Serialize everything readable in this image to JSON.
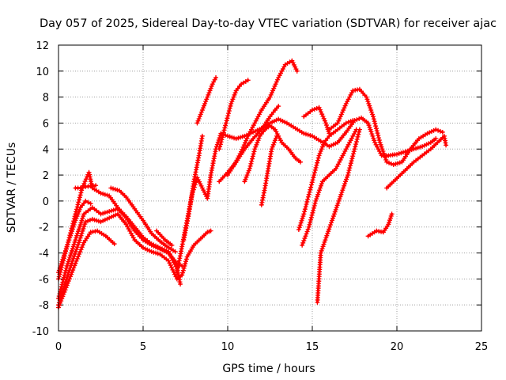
{
  "chart_data": {
    "type": "scatter",
    "title": "Day 057 of 2025, Sidereal Day-to-day VTEC variation (SDTVAR) for receiver ajac",
    "xlabel": "GPS time / hours",
    "ylabel": "SDTVAR / TECUs",
    "xlim": [
      0,
      25
    ],
    "ylim": [
      -10,
      12
    ],
    "xticks": [
      0,
      5,
      10,
      15,
      20,
      25
    ],
    "yticks": [
      -10,
      -8,
      -6,
      -4,
      -2,
      0,
      2,
      4,
      6,
      8,
      10,
      12
    ],
    "grid": true,
    "marker": "+",
    "color": "#ff0000",
    "series": [
      {
        "name": "s1",
        "points": [
          [
            0.0,
            -8.2
          ],
          [
            0.5,
            -6.5
          ],
          [
            1.0,
            -4.8
          ],
          [
            1.5,
            -3.2
          ],
          [
            1.9,
            -2.4
          ],
          [
            2.3,
            -2.3
          ],
          [
            2.8,
            -2.7
          ],
          [
            3.3,
            -3.3
          ]
        ]
      },
      {
        "name": "s2",
        "points": [
          [
            0.0,
            -8.0
          ],
          [
            0.6,
            -5.5
          ],
          [
            1.2,
            -3.2
          ],
          [
            1.6,
            -1.6
          ],
          [
            2.0,
            -1.4
          ],
          [
            2.5,
            -1.6
          ],
          [
            3.0,
            -1.3
          ],
          [
            3.5,
            -1.0
          ],
          [
            4.0,
            -1.8
          ],
          [
            4.5,
            -3.0
          ],
          [
            5.0,
            -3.6
          ],
          [
            5.5,
            -3.9
          ],
          [
            6.0,
            -4.1
          ],
          [
            6.5,
            -4.6
          ],
          [
            7.0,
            -6.0
          ],
          [
            7.3,
            -5.7
          ],
          [
            7.6,
            -4.3
          ],
          [
            8.0,
            -3.4
          ],
          [
            8.4,
            -2.9
          ],
          [
            8.8,
            -2.4
          ],
          [
            9.0,
            -2.3
          ]
        ]
      },
      {
        "name": "s3",
        "points": [
          [
            0.0,
            -7.5
          ],
          [
            0.5,
            -5.0
          ],
          [
            1.0,
            -3.0
          ],
          [
            1.5,
            -1.0
          ],
          [
            2.0,
            -0.5
          ],
          [
            2.5,
            -1.0
          ],
          [
            3.0,
            -0.8
          ],
          [
            3.5,
            -0.6
          ],
          [
            4.0,
            -1.3
          ],
          [
            4.5,
            -2.3
          ],
          [
            5.0,
            -3.0
          ],
          [
            5.5,
            -3.4
          ],
          [
            6.0,
            -3.7
          ],
          [
            6.5,
            -4.0
          ],
          [
            7.0,
            -4.8
          ],
          [
            7.3,
            -5.0
          ]
        ]
      },
      {
        "name": "s4",
        "points": [
          [
            0.0,
            -6.0
          ],
          [
            0.6,
            -3.0
          ],
          [
            1.0,
            -1.0
          ],
          [
            1.4,
            1.0
          ],
          [
            1.8,
            2.2
          ],
          [
            2.0,
            1.0
          ],
          [
            2.5,
            0.6
          ],
          [
            3.0,
            0.4
          ],
          [
            3.5,
            -0.5
          ],
          [
            4.0,
            -1.2
          ],
          [
            4.5,
            -2.0
          ],
          [
            5.0,
            -2.8
          ],
          [
            5.5,
            -3.3
          ],
          [
            6.0,
            -3.6
          ],
          [
            6.5,
            -3.9
          ],
          [
            7.0,
            -5.2
          ],
          [
            7.2,
            -6.4
          ]
        ]
      },
      {
        "name": "s5",
        "points": [
          [
            0.0,
            -5.5
          ],
          [
            0.5,
            -3.5
          ],
          [
            1.0,
            -1.5
          ],
          [
            1.3,
            -0.5
          ],
          [
            1.6,
            0.0
          ],
          [
            1.9,
            -0.2
          ]
        ]
      },
      {
        "name": "s6",
        "points": [
          [
            1.0,
            1.0
          ],
          [
            1.3,
            1.0
          ],
          [
            1.6,
            1.1
          ],
          [
            2.2,
            1.2
          ]
        ]
      },
      {
        "name": "s7",
        "points": [
          [
            3.1,
            1.0
          ],
          [
            3.6,
            0.8
          ],
          [
            4.0,
            0.3
          ],
          [
            4.5,
            -0.6
          ],
          [
            5.0,
            -1.5
          ],
          [
            5.5,
            -2.5
          ],
          [
            6.0,
            -3.1
          ],
          [
            6.4,
            -3.5
          ],
          [
            6.9,
            -3.9
          ]
        ]
      },
      {
        "name": "s8",
        "points": [
          [
            5.8,
            -2.3
          ],
          [
            6.3,
            -3.0
          ],
          [
            6.7,
            -3.4
          ]
        ]
      },
      {
        "name": "s9",
        "points": [
          [
            7.0,
            -5.5
          ],
          [
            7.3,
            -3.5
          ],
          [
            7.6,
            -1.5
          ],
          [
            7.9,
            0.5
          ],
          [
            8.2,
            1.8
          ],
          [
            8.5,
            1.0
          ],
          [
            8.8,
            0.2
          ],
          [
            9.0,
            2.0
          ],
          [
            9.3,
            4.0
          ],
          [
            9.6,
            5.2
          ],
          [
            10.0,
            5.0
          ],
          [
            10.5,
            4.8
          ],
          [
            11.0,
            5.0
          ],
          [
            11.5,
            5.3
          ],
          [
            12.0,
            5.6
          ],
          [
            12.5,
            6.0
          ],
          [
            13.0,
            6.3
          ],
          [
            13.5,
            6.0
          ],
          [
            14.0,
            5.6
          ],
          [
            14.5,
            5.2
          ],
          [
            15.0,
            5.0
          ],
          [
            15.5,
            4.6
          ],
          [
            16.0,
            4.2
          ],
          [
            16.5,
            4.5
          ],
          [
            17.0,
            5.3
          ],
          [
            17.5,
            6.2
          ],
          [
            17.9,
            6.4
          ],
          [
            18.3,
            6.0
          ],
          [
            18.7,
            4.5
          ],
          [
            19.1,
            3.5
          ],
          [
            19.5,
            3.5
          ],
          [
            20.0,
            3.6
          ],
          [
            20.5,
            3.8
          ],
          [
            21.0,
            4.0
          ],
          [
            21.5,
            4.2
          ],
          [
            22.0,
            4.5
          ],
          [
            22.3,
            4.8
          ]
        ]
      },
      {
        "name": "s10",
        "points": [
          [
            7.4,
            -3.0
          ],
          [
            7.7,
            -1.0
          ],
          [
            8.0,
            1.5
          ],
          [
            8.3,
            3.5
          ],
          [
            8.5,
            5.0
          ]
        ]
      },
      {
        "name": "s11",
        "points": [
          [
            8.2,
            6.0
          ],
          [
            8.5,
            7.0
          ],
          [
            8.8,
            8.0
          ],
          [
            9.1,
            9.0
          ],
          [
            9.3,
            9.5
          ]
        ]
      },
      {
        "name": "s12",
        "points": [
          [
            9.5,
            4.0
          ],
          [
            9.9,
            6.0
          ],
          [
            10.2,
            7.5
          ],
          [
            10.5,
            8.5
          ],
          [
            10.8,
            9.0
          ],
          [
            11.2,
            9.3
          ]
        ]
      },
      {
        "name": "s13",
        "points": [
          [
            9.5,
            1.5
          ],
          [
            10.0,
            2.2
          ],
          [
            10.5,
            3.0
          ],
          [
            11.0,
            4.0
          ],
          [
            11.5,
            4.8
          ],
          [
            12.0,
            5.5
          ],
          [
            12.5,
            6.5
          ],
          [
            12.8,
            7.0
          ],
          [
            13.0,
            7.3
          ]
        ]
      },
      {
        "name": "s14",
        "points": [
          [
            10.0,
            2.0
          ],
          [
            10.4,
            2.8
          ],
          [
            10.8,
            3.8
          ],
          [
            11.2,
            5.0
          ],
          [
            11.6,
            6.0
          ],
          [
            12.0,
            7.0
          ],
          [
            12.5,
            8.0
          ],
          [
            13.0,
            9.5
          ],
          [
            13.4,
            10.5
          ],
          [
            13.8,
            10.8
          ],
          [
            14.1,
            10.0
          ]
        ]
      },
      {
        "name": "s15",
        "points": [
          [
            11.0,
            1.5
          ],
          [
            11.3,
            2.5
          ],
          [
            11.6,
            4.0
          ],
          [
            11.9,
            5.0
          ],
          [
            12.2,
            5.5
          ],
          [
            12.5,
            5.8
          ],
          [
            12.8,
            5.5
          ],
          [
            13.2,
            4.5
          ],
          [
            13.6,
            4.0
          ],
          [
            14.0,
            3.3
          ],
          [
            14.3,
            3.0
          ]
        ]
      },
      {
        "name": "s16",
        "points": [
          [
            12.0,
            -0.3
          ],
          [
            12.2,
            1.0
          ],
          [
            12.4,
            2.5
          ],
          [
            12.6,
            4.0
          ],
          [
            12.9,
            5.0
          ]
        ]
      },
      {
        "name": "s17",
        "points": [
          [
            14.2,
            -2.2
          ],
          [
            14.5,
            -1.0
          ],
          [
            14.8,
            0.5
          ],
          [
            15.1,
            2.0
          ],
          [
            15.4,
            3.5
          ],
          [
            15.7,
            4.5
          ],
          [
            16.0,
            5.0
          ],
          [
            16.5,
            5.5
          ],
          [
            17.0,
            6.0
          ],
          [
            17.4,
            6.2
          ]
        ]
      },
      {
        "name": "s18",
        "points": [
          [
            14.4,
            -3.4
          ],
          [
            14.8,
            -2.0
          ],
          [
            15.2,
            0.0
          ],
          [
            15.6,
            1.5
          ],
          [
            16.0,
            2.0
          ],
          [
            16.4,
            2.5
          ],
          [
            16.8,
            3.5
          ],
          [
            17.2,
            4.5
          ],
          [
            17.6,
            5.5
          ]
        ]
      },
      {
        "name": "s19",
        "points": [
          [
            15.3,
            -7.8
          ],
          [
            15.5,
            -4.0
          ],
          [
            15.9,
            -2.5
          ],
          [
            16.3,
            -1.0
          ],
          [
            16.7,
            0.5
          ],
          [
            17.1,
            2.0
          ],
          [
            17.5,
            4.0
          ],
          [
            17.8,
            5.5
          ]
        ]
      },
      {
        "name": "s20",
        "points": [
          [
            14.5,
            6.5
          ],
          [
            15.0,
            7.0
          ],
          [
            15.4,
            7.2
          ],
          [
            15.8,
            6.0
          ],
          [
            16.0,
            5.2
          ]
        ]
      },
      {
        "name": "s21",
        "points": [
          [
            16.0,
            5.5
          ],
          [
            16.5,
            6.0
          ],
          [
            17.0,
            7.5
          ],
          [
            17.4,
            8.5
          ],
          [
            17.8,
            8.6
          ],
          [
            18.2,
            8.0
          ],
          [
            18.6,
            6.5
          ],
          [
            19.0,
            4.5
          ],
          [
            19.4,
            3.0
          ],
          [
            19.8,
            2.8
          ],
          [
            20.3,
            3.0
          ],
          [
            20.8,
            4.0
          ],
          [
            21.3,
            4.8
          ],
          [
            21.8,
            5.2
          ],
          [
            22.3,
            5.5
          ],
          [
            22.7,
            5.3
          ]
        ]
      },
      {
        "name": "s22",
        "points": [
          [
            18.3,
            -2.7
          ],
          [
            18.8,
            -2.3
          ],
          [
            19.2,
            -2.4
          ],
          [
            19.5,
            -1.8
          ],
          [
            19.7,
            -1.0
          ]
        ]
      },
      {
        "name": "s23",
        "points": [
          [
            19.4,
            1.0
          ],
          [
            19.8,
            1.5
          ],
          [
            20.2,
            2.0
          ],
          [
            20.6,
            2.5
          ],
          [
            21.0,
            3.0
          ],
          [
            21.5,
            3.5
          ],
          [
            22.0,
            4.0
          ],
          [
            22.4,
            4.5
          ],
          [
            22.8,
            5.0
          ],
          [
            22.9,
            4.3
          ]
        ]
      }
    ]
  }
}
